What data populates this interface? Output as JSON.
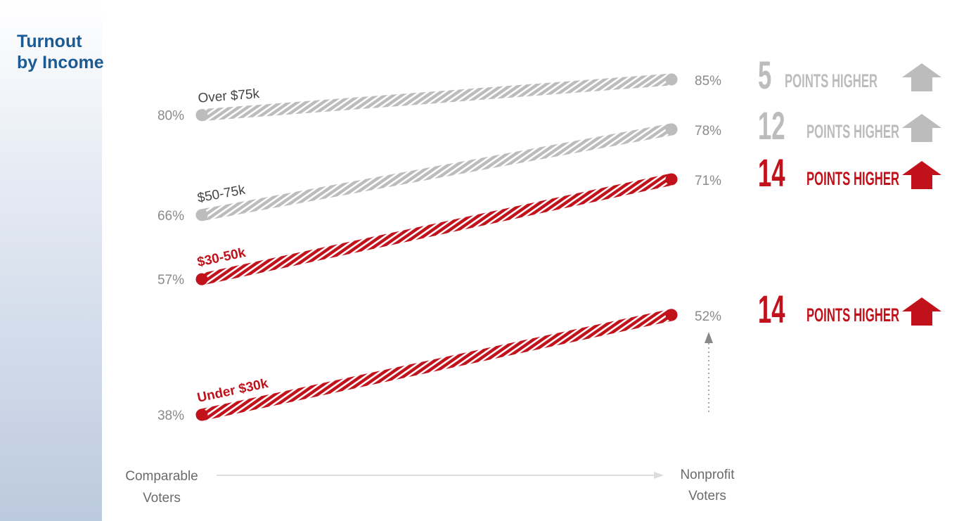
{
  "title": {
    "line1": "Turnout",
    "line2": "by Income"
  },
  "colors": {
    "accent": "#c1121c",
    "muted": "#bcbcbc",
    "title": "#1a5a95",
    "label_text": "#888888"
  },
  "chart_data": {
    "type": "slope",
    "x_labels": {
      "left": [
        "Comparable",
        "Voters"
      ],
      "right": [
        "Nonprofit",
        "Voters"
      ]
    },
    "series": [
      {
        "name": "Over $75k",
        "left": 80,
        "right": 85,
        "left_label": "80%",
        "right_label": "85%",
        "highlight": false
      },
      {
        "name": "$50-75k",
        "left": 66,
        "right": 78,
        "left_label": "66%",
        "right_label": "78%",
        "highlight": false
      },
      {
        "name": "$30-50k",
        "left": 57,
        "right": 71,
        "left_label": "57%",
        "right_label": "71%",
        "highlight": true
      },
      {
        "name": "Under $30k",
        "left": 38,
        "right": 52,
        "left_label": "38%",
        "right_label": "52%",
        "highlight": true
      }
    ]
  },
  "callouts": [
    {
      "number": "5",
      "text": "POINTS HIGHER",
      "highlight": false,
      "icon": "up-arrow-icon"
    },
    {
      "number": "12",
      "text": "POINTS HIGHER",
      "highlight": false,
      "icon": "up-arrow-icon"
    },
    {
      "number": "14",
      "text": "POINTS HIGHER",
      "highlight": true,
      "icon": "up-arrow-icon"
    },
    {
      "number": "14",
      "text": "POINTS HIGHER",
      "highlight": true,
      "icon": "up-arrow-icon"
    }
  ]
}
